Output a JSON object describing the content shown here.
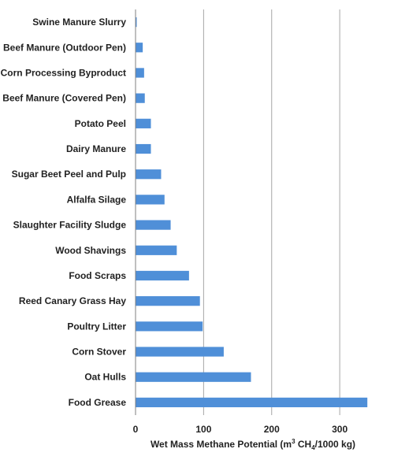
{
  "chart_data": {
    "type": "bar",
    "orientation": "horizontal",
    "categories": [
      "Swine Manure Slurry",
      "Beef  Manure (Outdoor Pen)",
      "Corn Processing Byproduct",
      "Beef Manure (Covered Pen)",
      "Potato Peel",
      "Dairy Manure",
      "Sugar Beet Peel and Pulp",
      "Alfalfa Silage",
      "Slaughter Facility Sludge",
      "Wood Shavings",
      "Food Scraps",
      "Reed Canary Grass Hay",
      "Poultry Litter",
      "Corn Stover",
      "Oat Hulls",
      "Food Grease"
    ],
    "values": [
      1,
      10,
      12,
      13,
      22,
      22,
      37,
      42,
      51,
      60,
      78,
      94,
      98,
      129,
      169,
      340
    ],
    "xlabel_parts": {
      "prefix": "Wet Mass Methane Potential (m",
      "sup": "3",
      "mid": " CH",
      "sub": "4",
      "suffix": "/1000 kg)"
    },
    "xlim": [
      0,
      345
    ],
    "xticks": [
      0,
      100,
      200,
      300
    ],
    "grid": "vertical",
    "bar_color": "#4f8fd8"
  }
}
